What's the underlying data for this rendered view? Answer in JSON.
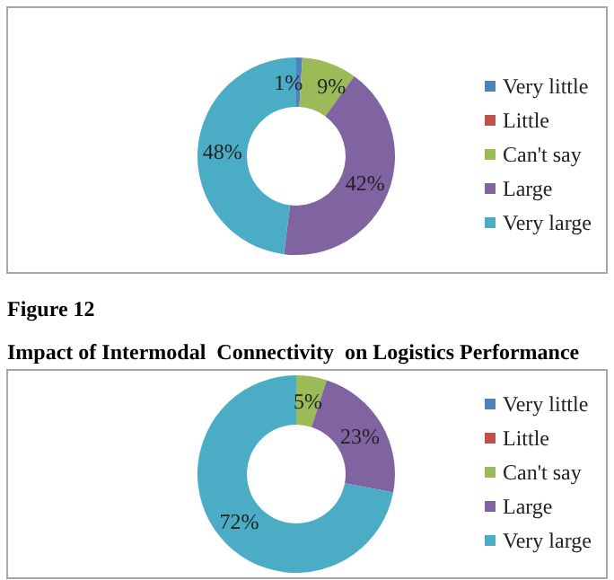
{
  "chart_data": [
    {
      "type": "donut",
      "categories": [
        "Very little",
        "Little",
        "Can't say",
        "Large",
        "Very large"
      ],
      "values": [
        1,
        0,
        9,
        42,
        48
      ],
      "colors": [
        "#4f81bd",
        "#c0504d",
        "#9bbb59",
        "#8064a2",
        "#4bacc6"
      ],
      "value_labels": [
        "1%",
        null,
        "9%",
        "42%",
        "48%"
      ],
      "legend": "right"
    },
    {
      "type": "donut",
      "title": "Impact of Intermodal  Connectivity  on Logistics Performance",
      "annotations": [
        "Figure 12"
      ],
      "categories": [
        "Very little",
        "Little",
        "Can't say",
        "Large",
        "Very large"
      ],
      "values": [
        0,
        0,
        5,
        23,
        72
      ],
      "colors": [
        "#4f81bd",
        "#c0504d",
        "#9bbb59",
        "#8064a2",
        "#4bacc6"
      ],
      "value_labels": [
        null,
        null,
        "5%",
        "23%",
        "72%"
      ],
      "legend": "right"
    }
  ]
}
